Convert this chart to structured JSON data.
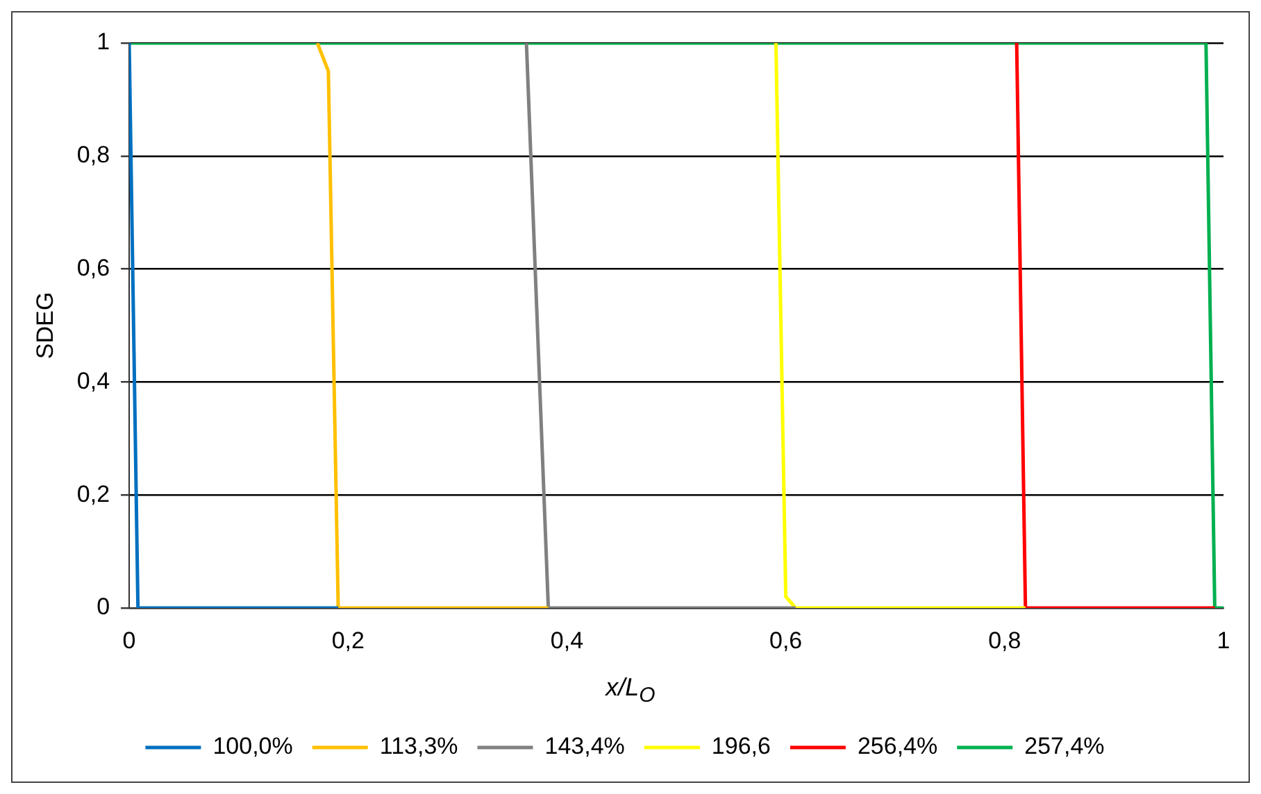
{
  "chart_data": {
    "type": "line",
    "xlabel": "x/L$_{O}$",
    "ylabel": "SDEG",
    "series": [
      {
        "name": "100,0%",
        "color": "#0070c0",
        "x": [
          0,
          0.008,
          0.191
        ],
        "values": [
          1,
          0,
          0
        ]
      },
      {
        "name": "113,3%",
        "color": "#ffc000",
        "x": [
          0.172,
          0.182,
          0.191,
          0.383
        ],
        "values": [
          1,
          0.95,
          0,
          0
        ]
      },
      {
        "name": "143,4%",
        "color": "#808080",
        "x": [
          0.363,
          0.383,
          0.609
        ],
        "values": [
          1,
          0,
          0
        ]
      },
      {
        "name": "196,6",
        "color": "#ffff00",
        "x": [
          0.591,
          0.6,
          0.609,
          0.819
        ],
        "values": [
          1,
          0.02,
          0,
          0
        ]
      },
      {
        "name": "256,4%",
        "color": "#ff0000",
        "x": [
          0.811,
          0.819,
          0.992
        ],
        "values": [
          1,
          0,
          0
        ]
      },
      {
        "name": "257,4%",
        "color": "#00b050",
        "x": [
          0,
          0.984,
          0.992,
          1
        ],
        "values": [
          1,
          1,
          0,
          0
        ]
      }
    ],
    "xlim": [
      0,
      1
    ],
    "ylim": [
      0,
      1
    ],
    "xticks": [
      0,
      {
        "value": 0.2,
        "label": "0,2"
      },
      {
        "value": 0.4,
        "label": "0,4"
      },
      {
        "value": 0.6,
        "label": "0,6"
      },
      {
        "value": 0.8,
        "label": "0,8"
      },
      1
    ],
    "yticks": [
      0,
      {
        "value": 0.2,
        "label": "0,2"
      },
      {
        "value": 0.4,
        "label": "0,4"
      },
      {
        "value": 0.6,
        "label": "0,6"
      },
      {
        "value": 0.8,
        "label": "0,8"
      },
      1
    ],
    "grid": "y",
    "legend": "bottom",
    "marker": "none",
    "line_style": "solid"
  }
}
